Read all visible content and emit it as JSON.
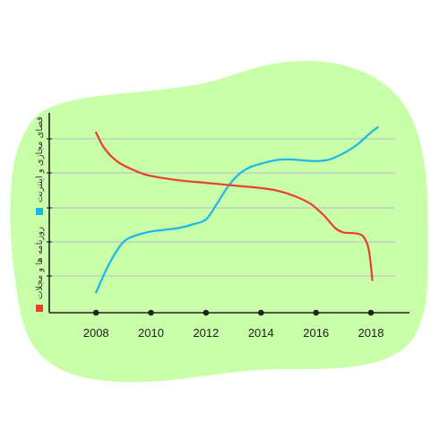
{
  "colors": {
    "background_blob": "#c8ffa8",
    "online_series": "#19b8e8",
    "print_series": "#e8402a",
    "axis": "#222222",
    "grid": "#b9b9c9"
  },
  "chart_data": {
    "type": "line",
    "x_tick_labels": [
      "2008",
      "2010",
      "2012",
      "2014",
      "2016",
      "2018"
    ],
    "x": [
      2008,
      2010,
      2012,
      2014,
      2016,
      2018
    ],
    "xlim": [
      2006.3,
      2019.4
    ],
    "ylim": [
      0,
      100
    ],
    "grid": "horizontal",
    "legend_position": "left-vertical",
    "series": [
      {
        "name": "فضای مجازی و اینترنت",
        "color": "#19b8e8",
        "points": [
          [
            2008.0,
            5
          ],
          [
            2008.5,
            22
          ],
          [
            2009.0,
            34
          ],
          [
            2009.5,
            38
          ],
          [
            2010.0,
            40
          ],
          [
            2010.5,
            41
          ],
          [
            2011.0,
            42
          ],
          [
            2011.5,
            44
          ],
          [
            2012.0,
            47
          ],
          [
            2012.4,
            56
          ],
          [
            2012.8,
            66
          ],
          [
            2013.2,
            73
          ],
          [
            2013.6,
            77
          ],
          [
            2014.0,
            79
          ],
          [
            2014.5,
            81
          ],
          [
            2015.0,
            81.5
          ],
          [
            2015.5,
            81
          ],
          [
            2016.0,
            80.5
          ],
          [
            2016.5,
            81.5
          ],
          [
            2017.0,
            85
          ],
          [
            2017.5,
            90
          ],
          [
            2018.0,
            97
          ],
          [
            2018.25,
            100
          ]
        ]
      },
      {
        "name": "روزنامه ها و مجلات",
        "color": "#e8402a",
        "points": [
          [
            2008.0,
            97
          ],
          [
            2008.3,
            88
          ],
          [
            2008.8,
            80
          ],
          [
            2009.5,
            74.5
          ],
          [
            2010.0,
            72
          ],
          [
            2011.0,
            69.5
          ],
          [
            2012.0,
            68
          ],
          [
            2013.0,
            66.5
          ],
          [
            2014.0,
            65
          ],
          [
            2014.6,
            63.5
          ],
          [
            2015.2,
            60.5
          ],
          [
            2015.8,
            56
          ],
          [
            2016.3,
            49
          ],
          [
            2016.7,
            42
          ],
          [
            2017.0,
            39.5
          ],
          [
            2017.4,
            39
          ],
          [
            2017.7,
            37.5
          ],
          [
            2017.9,
            31
          ],
          [
            2018.0,
            20
          ],
          [
            2018.05,
            12
          ]
        ]
      }
    ]
  }
}
